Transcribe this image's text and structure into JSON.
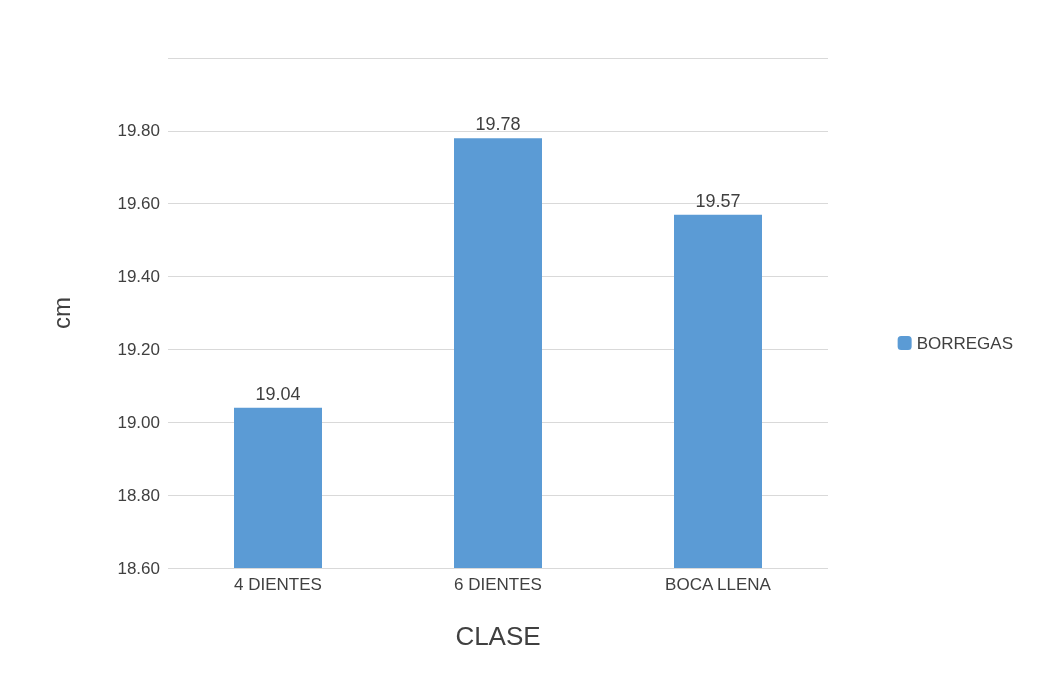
{
  "chart_data": {
    "type": "bar",
    "xlabel": "CLASE",
    "ylabel": "cm",
    "categories": [
      "4 DIENTES",
      "6 DIENTES",
      "BOCA LLENA"
    ],
    "series": [
      {
        "name": "BORREGAS",
        "color": "#5b9bd5",
        "values": [
          19.04,
          19.78,
          19.57
        ]
      }
    ],
    "ylim": [
      18.6,
      20.0
    ],
    "yticks": [
      {
        "value": 18.6,
        "label": "18.60"
      },
      {
        "value": 18.8,
        "label": "18.80"
      },
      {
        "value": 19.0,
        "label": "19.00"
      },
      {
        "value": 19.2,
        "label": "19.20"
      },
      {
        "value": 19.4,
        "label": "19.40"
      },
      {
        "value": 19.6,
        "label": "19.60"
      },
      {
        "value": 19.8,
        "label": "19.80"
      },
      {
        "value": 20.0,
        "label": null
      }
    ],
    "grid": "y",
    "legend": "right",
    "data_labels": true
  }
}
